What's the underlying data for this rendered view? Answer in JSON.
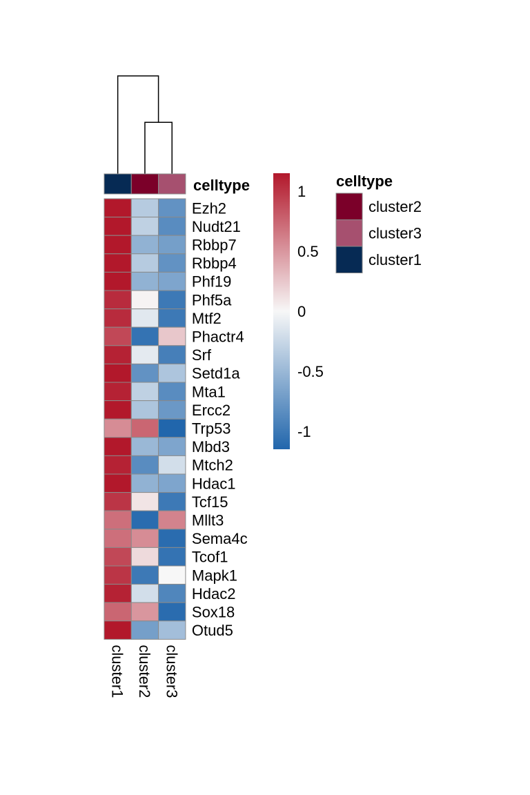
{
  "chart_data": {
    "type": "heatmap",
    "title": "",
    "columns": [
      "cluster1",
      "cluster2",
      "cluster3"
    ],
    "rows": [
      "Ezh2",
      "Nudt21",
      "Rbbp7",
      "Rbbp4",
      "Phf19",
      "Phf5a",
      "Mtf2",
      "Phactr4",
      "Srf",
      "Setd1a",
      "Mta1",
      "Ercc2",
      "Trp53",
      "Mbd3",
      "Mtch2",
      "Hdac1",
      "Tcf15",
      "Mllt3",
      "Sema4c",
      "Tcof1",
      "Mapk1",
      "Hdac2",
      "Sox18",
      "Otud5"
    ],
    "values": [
      [
        1.15,
        -0.35,
        -0.8
      ],
      [
        1.15,
        -0.3,
        -0.85
      ],
      [
        1.15,
        -0.55,
        -0.7
      ],
      [
        1.15,
        -0.35,
        -0.8
      ],
      [
        1.15,
        -0.55,
        -0.65
      ],
      [
        1.05,
        0.02,
        -1.0
      ],
      [
        1.05,
        -0.12,
        -1.0
      ],
      [
        0.9,
        -1.05,
        0.25
      ],
      [
        1.1,
        -0.1,
        -0.95
      ],
      [
        1.15,
        -0.8,
        -0.4
      ],
      [
        1.1,
        -0.3,
        -0.85
      ],
      [
        1.15,
        -0.4,
        -0.75
      ],
      [
        0.55,
        0.75,
        -1.15
      ],
      [
        1.15,
        -0.5,
        -0.65
      ],
      [
        1.1,
        -0.85,
        -0.2
      ],
      [
        1.15,
        -0.55,
        -0.65
      ],
      [
        1.0,
        0.1,
        -1.0
      ],
      [
        0.7,
        -1.1,
        0.6
      ],
      [
        0.7,
        0.55,
        -1.1
      ],
      [
        0.9,
        0.15,
        -1.05
      ],
      [
        1.0,
        -1.0,
        0.0
      ],
      [
        1.1,
        -0.2,
        -0.9
      ],
      [
        0.75,
        0.5,
        -1.1
      ],
      [
        1.15,
        -0.7,
        -0.45
      ]
    ],
    "color_scale": {
      "min": -1.15,
      "max": 1.15,
      "low": "#2166ac",
      "mid": "#f7f7f7",
      "high": "#b2182b",
      "ticks": [
        1,
        0.5,
        0,
        -0.5,
        -1
      ],
      "tick_labels": [
        "1",
        "0.5",
        "0",
        "-0.5",
        "-1"
      ]
    },
    "column_annotation": {
      "name": "celltype",
      "values": [
        "cluster1",
        "cluster2",
        "cluster3"
      ]
    },
    "legend": {
      "title": "celltype",
      "entries": [
        {
          "label": "cluster2",
          "color": "#7b0029"
        },
        {
          "label": "cluster3",
          "color": "#a6506f"
        },
        {
          "label": "cluster1",
          "color": "#062a54"
        }
      ]
    },
    "dendrogram": {
      "merges": [
        {
          "left": "cluster2",
          "right": "cluster3",
          "height": 1.0
        },
        {
          "left": "cluster1",
          "right": "cluster2+cluster3",
          "height": 1.9
        }
      ]
    }
  }
}
